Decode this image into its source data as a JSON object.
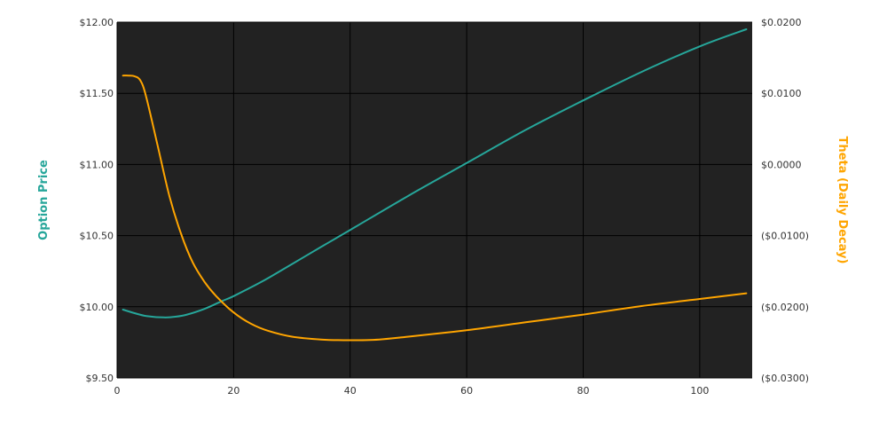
{
  "chart_data": {
    "type": "line",
    "title": "",
    "xlabel": "",
    "ylabel": "Option Price",
    "y2label": "Theta (Daily Decay)",
    "xlim": [
      0,
      109
    ],
    "ylim": [
      9.5,
      12.0
    ],
    "y2lim": [
      -0.03,
      0.02
    ],
    "x_ticks": [
      0,
      20,
      40,
      60,
      80,
      100
    ],
    "x_tick_labels": [
      "0",
      "20",
      "40",
      "60",
      "80",
      "100"
    ],
    "y_ticks": [
      9.5,
      10.0,
      10.5,
      11.0,
      11.5,
      12.0
    ],
    "y_tick_labels": [
      "$9.50",
      "$10.00",
      "$10.50",
      "$11.00",
      "$11.50",
      "$12.00"
    ],
    "y2_ticks": [
      -0.03,
      -0.02,
      -0.01,
      0.0,
      0.01,
      0.02
    ],
    "y2_tick_labels": [
      "($0.0300)",
      "($0.0200)",
      "($0.0100)",
      "$0.0000",
      "$0.0100",
      "$0.0200"
    ],
    "grid": true,
    "plot_background": "#222222",
    "colors": {
      "option_price": "#26a69a",
      "theta": "#ffa500",
      "grid": "#000000"
    },
    "series": [
      {
        "name": "Option Price",
        "axis": "left",
        "x": [
          1,
          3,
          5,
          8,
          10,
          12,
          15,
          18,
          20,
          25,
          30,
          35,
          40,
          50,
          60,
          70,
          80,
          90,
          100,
          108
        ],
        "values": [
          9.98,
          9.955,
          9.935,
          9.925,
          9.93,
          9.945,
          9.985,
          10.04,
          10.075,
          10.18,
          10.3,
          10.42,
          10.54,
          10.78,
          11.01,
          11.24,
          11.45,
          11.65,
          11.83,
          11.95
        ]
      },
      {
        "name": "Theta (Daily Decay)",
        "axis": "right",
        "x": [
          1,
          2,
          3,
          4,
          5,
          7,
          9,
          11,
          13,
          15,
          17,
          20,
          23,
          26,
          30,
          35,
          40,
          45,
          50,
          60,
          70,
          80,
          90,
          100,
          108
        ],
        "values": [
          0.0125,
          0.0125,
          0.0124,
          0.0118,
          0.0095,
          0.0025,
          -0.0045,
          -0.0098,
          -0.0138,
          -0.0165,
          -0.0185,
          -0.0208,
          -0.0224,
          -0.0234,
          -0.0242,
          -0.0246,
          -0.0247,
          -0.0246,
          -0.0242,
          -0.0233,
          -0.0222,
          -0.0211,
          -0.0199,
          -0.0189,
          -0.0181
        ]
      }
    ]
  }
}
